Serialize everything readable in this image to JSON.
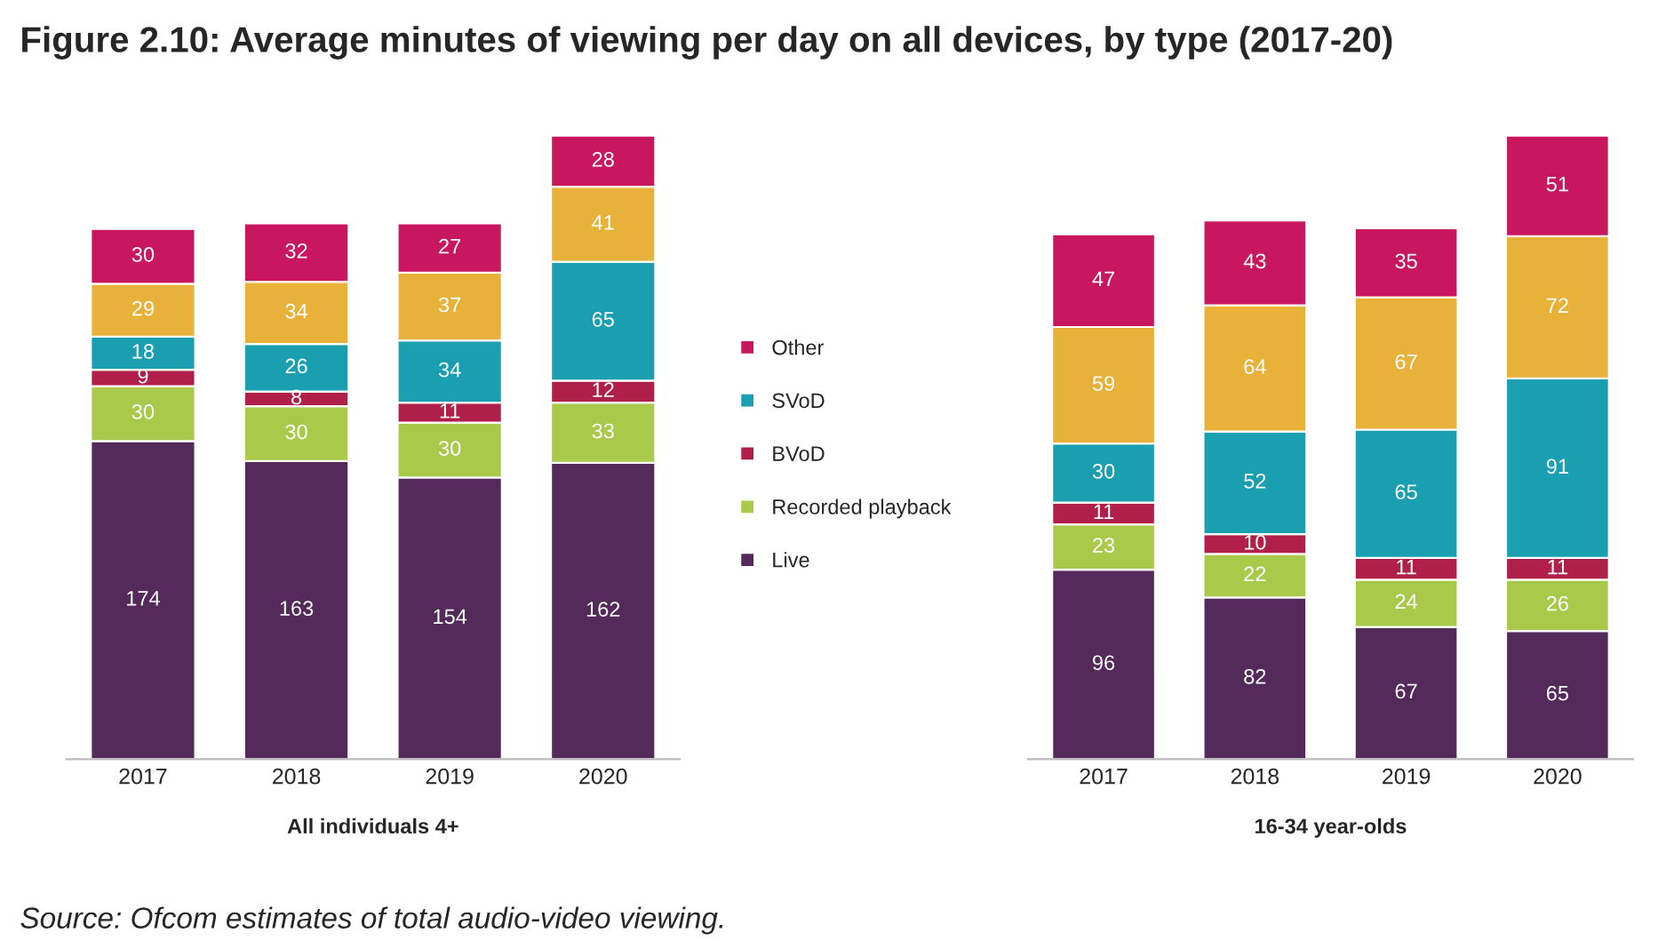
{
  "chart_data": [
    {
      "type": "bar",
      "stacked": true,
      "data_labels": true,
      "legend": "right",
      "title": "Figure 2.10: Average minutes of viewing per day on all devices, by type (2017-20)",
      "xlabel": "All individuals 4+",
      "annotations": [
        "Source: Ofcom estimates of total audio-video viewing."
      ],
      "categories": [
        "2017",
        "2018",
        "2019",
        "2020"
      ],
      "series": [
        {
          "name": "Live",
          "color": "#532a5a",
          "values": [
            174,
            163,
            154,
            162
          ]
        },
        {
          "name": "Recorded playback",
          "color": "#a9c94a",
          "values": [
            30,
            30,
            30,
            33
          ]
        },
        {
          "name": "BVoD",
          "color": "#b01e4a",
          "values": [
            9,
            8,
            11,
            12
          ]
        },
        {
          "name": "SVoD",
          "color": "#1a9fb0",
          "values": [
            18,
            26,
            34,
            65
          ]
        },
        {
          "color": "#e8b23a",
          "values": [
            29,
            34,
            37,
            41
          ]
        },
        {
          "name": "Other",
          "color": "#c8165f",
          "values": [
            30,
            32,
            27,
            28
          ]
        }
      ]
    },
    {
      "type": "bar",
      "stacked": true,
      "data_labels": true,
      "xlabel": "16-34 year-olds",
      "categories": [
        "2017",
        "2018",
        "2019",
        "2020"
      ],
      "series": [
        {
          "name": "Live",
          "color": "#532a5a",
          "values": [
            96,
            82,
            67,
            65
          ]
        },
        {
          "name": "Recorded playback",
          "color": "#a9c94a",
          "values": [
            23,
            22,
            24,
            26
          ]
        },
        {
          "name": "BVoD",
          "color": "#b01e4a",
          "values": [
            11,
            10,
            11,
            11
          ]
        },
        {
          "name": "SVoD",
          "color": "#1a9fb0",
          "values": [
            30,
            52,
            65,
            91
          ]
        },
        {
          "color": "#e8b23a",
          "values": [
            59,
            64,
            67,
            72
          ]
        },
        {
          "name": "Other",
          "color": "#c8165f",
          "values": [
            47,
            43,
            35,
            51
          ]
        }
      ]
    }
  ]
}
